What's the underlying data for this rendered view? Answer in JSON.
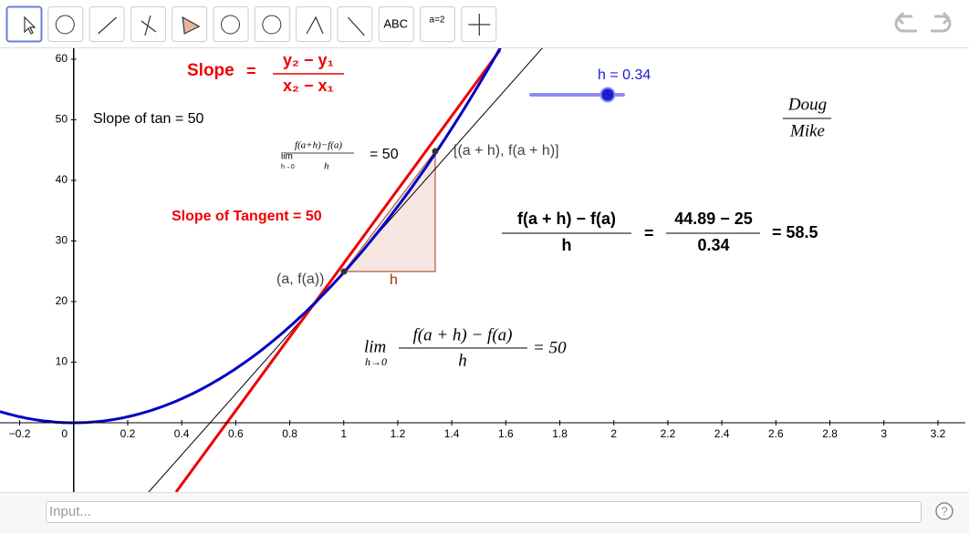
{
  "toolbar": {
    "buttons": [
      "ABC",
      "a=2"
    ]
  },
  "graph": {
    "xticks": [
      {
        "value": -0.2,
        "label": "−0.2"
      },
      0,
      0.2,
      0.4,
      0.6,
      0.8,
      1,
      1.2,
      1.4,
      1.6,
      1.8,
      2,
      2.2,
      2.4,
      2.6,
      2.8,
      3,
      3.2
    ],
    "yticks": [
      10,
      20,
      30,
      40,
      50,
      60
    ],
    "slope_formula": {
      "label": "Slope",
      "equals": "=",
      "numerator": "y₂ − y₁",
      "denominator": "x₂ − x₁"
    },
    "slope_of_tan": "Slope of tan = 50",
    "small_limit": {
      "lim": "lim",
      "sub": "h→0",
      "numerator": "f(a+h)−f(a)",
      "denominator": "h",
      "result": "= 50"
    },
    "secant_point": "[(a + h), f(a + h)]",
    "slope_of_tangent": "Slope of Tangent = 50",
    "point_a": "(a, f(a))",
    "h_label": "h",
    "slider": "h = 0.34",
    "names": {
      "numerator": "Doug",
      "denominator": "Mike"
    },
    "difference_quotient": {
      "numerator": "f(a + h) − f(a)",
      "denominator": "h",
      "equals": "=",
      "value_numerator": "44.89 − 25",
      "value_denominator": "0.34",
      "result": "= 58.5"
    },
    "big_limit": {
      "lim": "lim",
      "sub": "h→0",
      "numerator": "f(a + h) − f(a)",
      "denominator": "h",
      "result": "= 50"
    }
  },
  "input_bar": {
    "placeholder": "Input...",
    "help": "?"
  }
}
